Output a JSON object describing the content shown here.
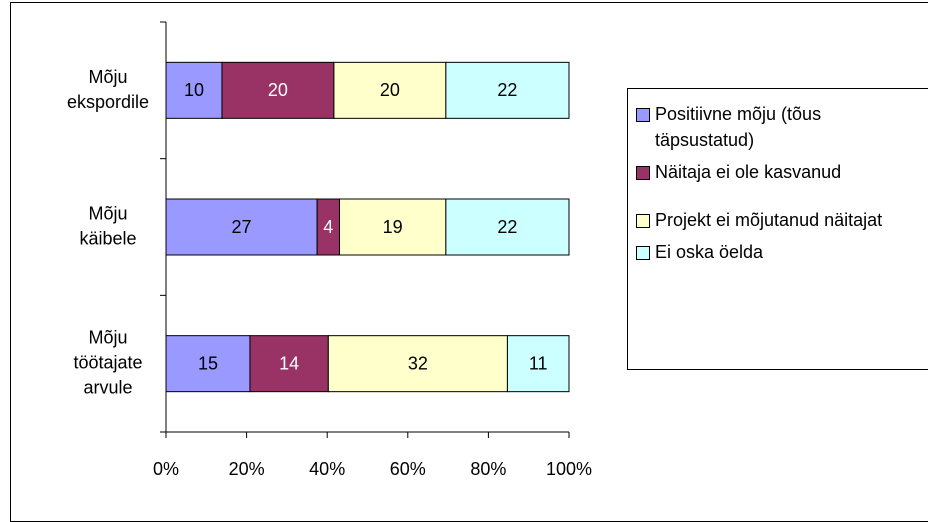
{
  "chart_data": {
    "type": "bar",
    "orientation": "horizontal",
    "stack": "percent",
    "categories": [
      "Mõju ekspordile",
      "Mõju käibele",
      "Mõju töötajate arvule"
    ],
    "series": [
      {
        "name": "Positiivne mõju (tõus täpsustatud)",
        "color": "#9999ff",
        "values": [
          10,
          27,
          15
        ]
      },
      {
        "name": "Näitaja ei ole kasvanud",
        "color": "#993366",
        "values": [
          20,
          4,
          14
        ]
      },
      {
        "name": "Projekt ei mõjutanud näitajat",
        "color": "#ffffcc",
        "values": [
          20,
          19,
          32
        ]
      },
      {
        "name": "Ei oska öelda",
        "color": "#ccffff",
        "values": [
          22,
          22,
          11
        ]
      }
    ],
    "xlim": [
      0,
      100
    ],
    "xticks": [
      {
        "value": 0,
        "label": "0%"
      },
      {
        "value": 20,
        "label": "20%"
      },
      {
        "value": 40,
        "label": "40%"
      },
      {
        "value": 60,
        "label": "60%"
      },
      {
        "value": 80,
        "label": "80%"
      },
      {
        "value": 100,
        "label": "100%"
      }
    ],
    "grid": false,
    "legend": "right"
  }
}
